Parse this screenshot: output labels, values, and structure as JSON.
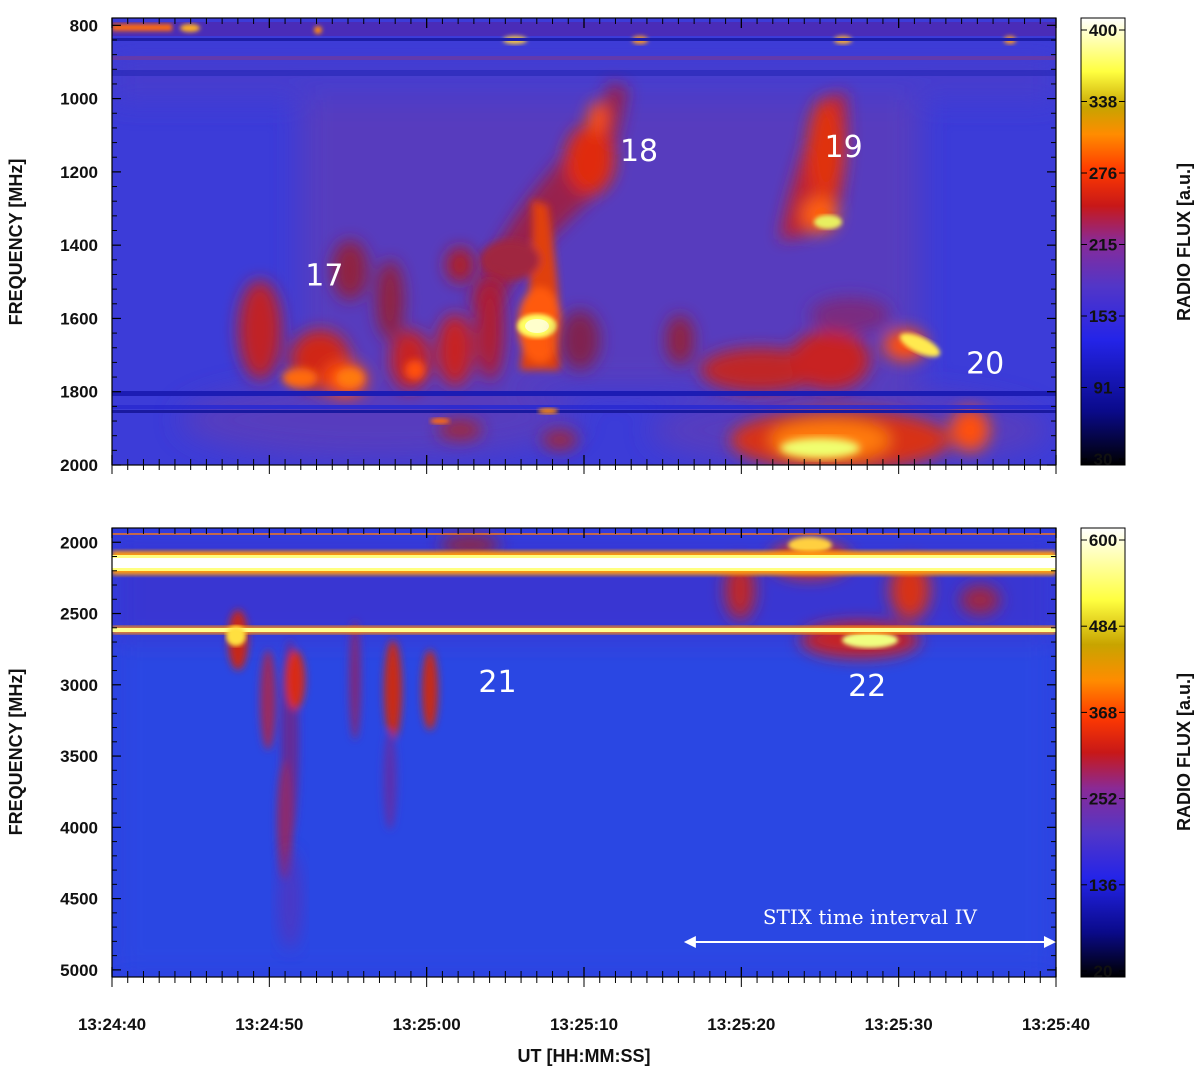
{
  "figure": {
    "x_axis_title": "UT [HH:MM:SS]",
    "x_ticks": [
      "13:24:40",
      "13:24:50",
      "13:25:00",
      "13:25:10",
      "13:25:20",
      "13:25:30",
      "13:25:40"
    ]
  },
  "chart_data": [
    {
      "type": "heatmap",
      "name": "upper-spectrogram",
      "ylabel": "FREQUENCY [MHz]",
      "xlabel": "",
      "x_range": [
        "13:24:40",
        "13:25:40"
      ],
      "y_range_mhz": [
        780,
        2000
      ],
      "y_ticks": [
        "800",
        "1000",
        "1200",
        "1400",
        "1600",
        "1800",
        "2000"
      ],
      "colorbar": {
        "label": "RADIO FLUX [a.u.]",
        "ticks": [
          "400",
          "338",
          "276",
          "215",
          "153",
          "91",
          "30"
        ],
        "range": [
          30,
          400
        ]
      },
      "colormap": [
        "#000000",
        "#0a0a7a",
        "#2222e6",
        "#4a3fd0",
        "#7a2fa0",
        "#c81a1a",
        "#ff3a00",
        "#ff8a00",
        "#c9b000",
        "#ffff40",
        "#ffffff"
      ],
      "annotations": [
        {
          "text": "17",
          "t": 13.5,
          "f": 1510
        },
        {
          "text": "18",
          "t": 33.5,
          "f": 1170
        },
        {
          "text": "19",
          "t": 46.5,
          "f": 1160
        },
        {
          "text": "20",
          "t": 55.5,
          "f": 1750
        }
      ]
    },
    {
      "type": "heatmap",
      "name": "lower-spectrogram",
      "ylabel": "FREQUENCY [MHz]",
      "xlabel": "UT [HH:MM:SS]",
      "x_range": [
        "13:24:40",
        "13:25:40"
      ],
      "y_range_mhz": [
        1900,
        5050
      ],
      "y_ticks": [
        "2000",
        "2500",
        "3000",
        "3500",
        "4000",
        "4500",
        "5000"
      ],
      "colorbar": {
        "label": "RADIO FLUX [a.u.]",
        "ticks": [
          "600",
          "484",
          "368",
          "252",
          "136",
          "20"
        ],
        "range": [
          20,
          600
        ]
      },
      "colormap": [
        "#000000",
        "#0a0a7a",
        "#2222e6",
        "#4a3fd0",
        "#7a2fa0",
        "#c81a1a",
        "#ff3a00",
        "#ff8a00",
        "#c9b000",
        "#ffff40",
        "#ffffff"
      ],
      "annotations": [
        {
          "text": "21",
          "t": 24.5,
          "f": 3050
        },
        {
          "text": "22",
          "t": 48,
          "f": 3080
        }
      ],
      "interval": {
        "label": "STIX time interval IV",
        "start": "13:25:18",
        "end": "13:25:40"
      }
    }
  ]
}
